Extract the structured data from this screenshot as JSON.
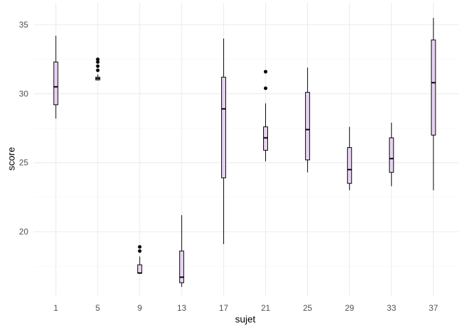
{
  "chart_data": {
    "type": "boxplot",
    "title": "",
    "xlabel": "sujet",
    "ylabel": "score",
    "ylim": [
      15.0,
      36.0
    ],
    "y_ticks": [
      20,
      25,
      30,
      35
    ],
    "grid": true,
    "colors": {
      "box_fill": "#e8d2f4",
      "outline": "#000000",
      "grid_major": "#ebebeb",
      "grid_minor": "#f5f5f5"
    },
    "categories": [
      "1",
      "5",
      "9",
      "13",
      "17",
      "21",
      "25",
      "29",
      "33",
      "37"
    ],
    "boxes": [
      {
        "q1": 29.2,
        "median": 30.5,
        "q3": 32.3,
        "whisker_low": 28.2,
        "whisker_high": 34.2,
        "outliers": []
      },
      {
        "q1": 31.0,
        "median": 31.1,
        "q3": 31.2,
        "whisker_low": 31.0,
        "whisker_high": 31.4,
        "outliers": [
          31.7,
          32.0,
          32.3,
          32.5
        ]
      },
      {
        "q1": 17.0,
        "median": 17.0,
        "q3": 17.6,
        "whisker_low": 17.0,
        "whisker_high": 18.2,
        "outliers": [
          18.6,
          18.9
        ]
      },
      {
        "q1": 16.3,
        "median": 16.7,
        "q3": 18.6,
        "whisker_low": 16.0,
        "whisker_high": 21.2,
        "outliers": []
      },
      {
        "q1": 23.9,
        "median": 28.9,
        "q3": 31.2,
        "whisker_low": 19.1,
        "whisker_high": 34.0,
        "outliers": []
      },
      {
        "q1": 25.9,
        "median": 26.8,
        "q3": 27.6,
        "whisker_low": 25.1,
        "whisker_high": 29.3,
        "outliers": [
          30.4,
          31.6
        ]
      },
      {
        "q1": 25.2,
        "median": 27.4,
        "q3": 30.1,
        "whisker_low": 24.3,
        "whisker_high": 31.9,
        "outliers": []
      },
      {
        "q1": 23.5,
        "median": 24.5,
        "q3": 26.1,
        "whisker_low": 23.0,
        "whisker_high": 27.6,
        "outliers": []
      },
      {
        "q1": 24.3,
        "median": 25.3,
        "q3": 26.8,
        "whisker_low": 23.3,
        "whisker_high": 27.9,
        "outliers": []
      },
      {
        "q1": 27.0,
        "median": 30.8,
        "q3": 33.9,
        "whisker_low": 23.0,
        "whisker_high": 35.5,
        "outliers": []
      }
    ]
  }
}
